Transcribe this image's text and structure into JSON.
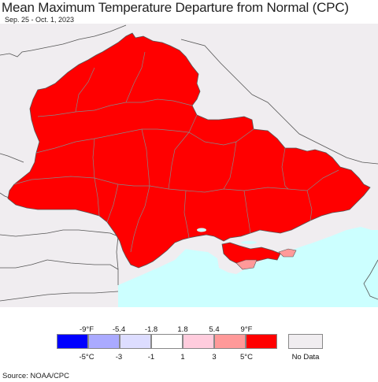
{
  "title": "Mean Maximum Temperature Departure from Normal (CPC)",
  "subtitle": "Sep. 25 - Oct. 1, 2023",
  "colors": {
    "land_nodata": "#f0edf0",
    "sea": "#ccffff",
    "warm_strong": "#ff0000",
    "warm_mid": "#ff9999",
    "warm_light": "#ffccdd",
    "neutral": "#ffffff",
    "cool_light": "#ddddff",
    "cool_mid": "#aaaaff",
    "cool_strong": "#0000ff",
    "border": "#555555",
    "oblast_border": "#888888"
  },
  "legend": {
    "f_labels": [
      "-9°F",
      "-5.4",
      "-1.8",
      "1.8",
      "5.4",
      "9°F"
    ],
    "c_labels": [
      "-5°C",
      "-3",
      "-1",
      "1",
      "3",
      "5°C"
    ],
    "swatches": [
      {
        "color": "#0000ff",
        "label": "< -5°C"
      },
      {
        "color": "#aaaaff",
        "label": "-5 to -3"
      },
      {
        "color": "#ddddff",
        "label": "-3 to -1"
      },
      {
        "color": "#ffffff",
        "label": "-1 to 1"
      },
      {
        "color": "#ffccdd",
        "label": "1 to 3"
      },
      {
        "color": "#ff9999",
        "label": "3 to 5"
      },
      {
        "color": "#ff0000",
        "label": "> 5°C"
      }
    ],
    "nodata_label": "No Data"
  },
  "source": "Source: NOAA/CPC"
}
